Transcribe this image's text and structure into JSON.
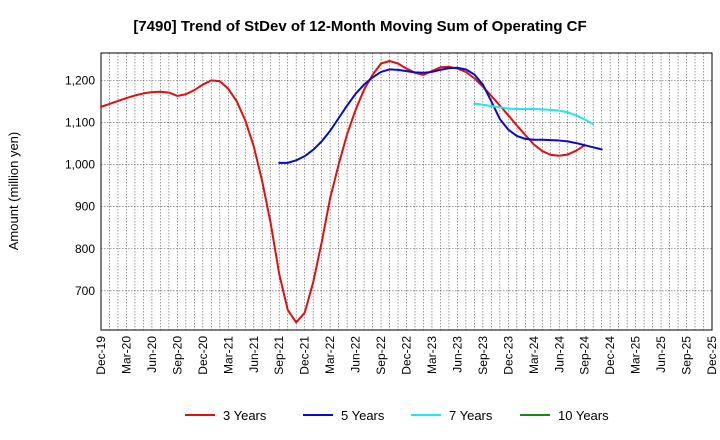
{
  "chart_data": {
    "type": "line",
    "title": "[7490]  Trend of StDev of 12-Month Moving Sum of Operating CF",
    "ylabel": "Amount (million yen)",
    "xlabel": "",
    "ylim": [
      607,
      1265
    ],
    "yticks": [
      700,
      800,
      900,
      1000,
      1100,
      1200
    ],
    "ytick_labels": [
      "700",
      "800",
      "900",
      "1,000",
      "1,100",
      "1,200"
    ],
    "x_start": "Dec-19",
    "x_end": "Dec-25",
    "xticks": [
      "Dec-19",
      "Mar-20",
      "Jun-20",
      "Sep-20",
      "Dec-20",
      "Mar-21",
      "Jun-21",
      "Sep-21",
      "Dec-21",
      "Mar-22",
      "Jun-22",
      "Sep-22",
      "Dec-22",
      "Mar-23",
      "Jun-23",
      "Sep-23",
      "Dec-23",
      "Mar-24",
      "Jun-24",
      "Sep-24",
      "Dec-24",
      "Mar-25",
      "Jun-25",
      "Sep-25",
      "Dec-25"
    ],
    "grid": true,
    "legend_position": "bottom",
    "series": [
      {
        "name": "3 Years",
        "color": "#dd1111",
        "start": "Dec-19",
        "values": [
          1137,
          1144,
          1151,
          1158,
          1164,
          1169,
          1172,
          1173,
          1171,
          1163,
          1167,
          1177,
          1190,
          1200,
          1198,
          1180,
          1150,
          1105,
          1043,
          960,
          860,
          740,
          655,
          625,
          648,
          720,
          815,
          920,
          1000,
          1072,
          1130,
          1178,
          1213,
          1240,
          1246,
          1240,
          1228,
          1218,
          1213,
          1222,
          1231,
          1232,
          1228,
          1220,
          1205,
          1185,
          1163,
          1140,
          1117,
          1093,
          1070,
          1048,
          1032,
          1023,
          1021,
          1024,
          1033,
          1046
        ]
      },
      {
        "name": "5 Years",
        "color": "#0a0acc",
        "start": "Sep-21",
        "values": [
          1004,
          1004,
          1010,
          1020,
          1035,
          1055,
          1080,
          1110,
          1140,
          1168,
          1190,
          1207,
          1220,
          1226,
          1225,
          1222,
          1219,
          1218,
          1220,
          1225,
          1229,
          1230,
          1226,
          1214,
          1190,
          1150,
          1108,
          1083,
          1068,
          1061,
          1059,
          1059,
          1058,
          1057,
          1055,
          1051,
          1046,
          1041,
          1036
        ]
      },
      {
        "name": "7 Years",
        "color": "#22e6f0",
        "start": "Aug-23",
        "values": [
          1145,
          1142,
          1139,
          1136,
          1133,
          1132,
          1132,
          1132,
          1131,
          1130,
          1128,
          1124,
          1117,
          1107,
          1096
        ]
      },
      {
        "name": "10 Years",
        "color": "#1a8a1a",
        "start": "Sep-24",
        "values": []
      }
    ]
  }
}
